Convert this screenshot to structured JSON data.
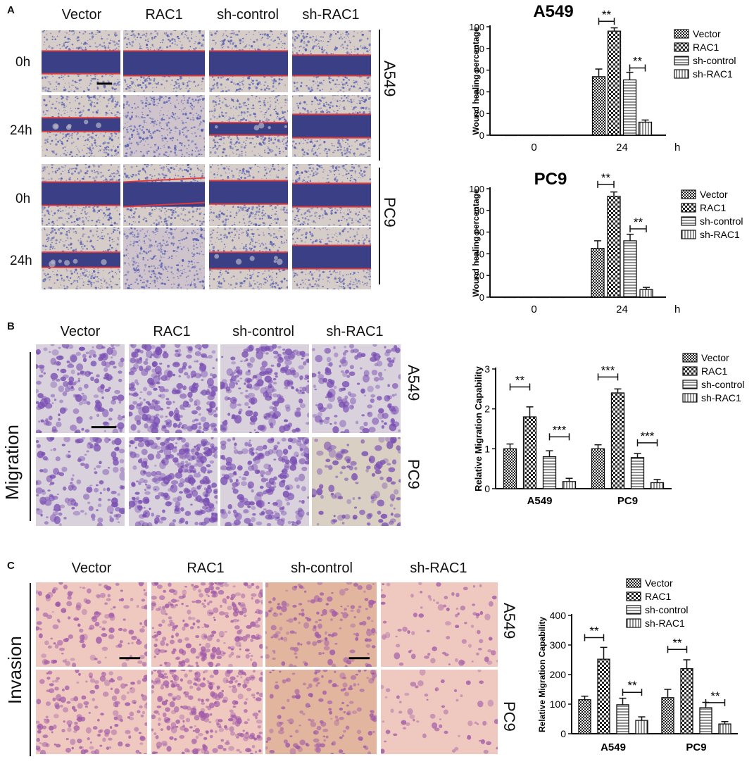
{
  "panelA": {
    "letter": "A",
    "cols": [
      "Vector",
      "RAC1",
      "sh-control",
      "sh-RAC1"
    ],
    "rows": [
      "0h",
      "24h",
      "0h",
      "24h"
    ],
    "cell_lines": [
      "A549",
      "PC9"
    ]
  },
  "panelB": {
    "letter": "B",
    "cols": [
      "Vector",
      "RAC1",
      "sh-control",
      "sh-RAC1"
    ],
    "side": "Migration",
    "cell_lines": [
      "A549",
      "PC9"
    ]
  },
  "panelC": {
    "letter": "C",
    "cols": [
      "Vector",
      "RAC1",
      "sh-control",
      "sh-RAC1"
    ],
    "side": "Invasion",
    "cell_lines": [
      "A549",
      "PC9"
    ]
  },
  "colors": {
    "stain": "#7b6fc9",
    "gap": "#3b3f86",
    "wound_line": "#e23a3a",
    "background_tissue": "#d9c9c6"
  },
  "chart_data": [
    {
      "type": "bar",
      "title": "A549",
      "ylabel": "Wound healing percentage",
      "x_unit": "h",
      "categories": [
        "0",
        "24"
      ],
      "ylim": [
        0,
        100
      ],
      "yticks": [
        0,
        20,
        40,
        60,
        80,
        100
      ],
      "series": [
        {
          "name": "Vector",
          "values": [
            0,
            54
          ],
          "errors": [
            0,
            7
          ]
        },
        {
          "name": "RAC1",
          "values": [
            0,
            96
          ],
          "errors": [
            0,
            3
          ]
        },
        {
          "name": "sh-control",
          "values": [
            0,
            51
          ],
          "errors": [
            0,
            7
          ]
        },
        {
          "name": "sh-RAC1",
          "values": [
            0,
            12
          ],
          "errors": [
            0,
            2
          ]
        }
      ],
      "annotations": [
        {
          "text": "**",
          "from": "Vector",
          "to": "RAC1",
          "y": 105
        },
        {
          "text": "**",
          "from": "sh-control",
          "to": "sh-RAC1",
          "y": 62
        }
      ]
    },
    {
      "type": "bar",
      "title": "PC9",
      "ylabel": "Wound healing percentage",
      "x_unit": "h",
      "categories": [
        "0",
        "24"
      ],
      "ylim": [
        0,
        100
      ],
      "yticks": [
        0,
        20,
        40,
        60,
        80,
        100
      ],
      "series": [
        {
          "name": "Vector",
          "values": [
            0,
            45
          ],
          "errors": [
            0,
            7
          ]
        },
        {
          "name": "RAC1",
          "values": [
            0,
            93
          ],
          "errors": [
            0,
            4
          ]
        },
        {
          "name": "sh-control",
          "values": [
            0,
            52
          ],
          "errors": [
            0,
            6
          ]
        },
        {
          "name": "sh-RAC1",
          "values": [
            0,
            7
          ],
          "errors": [
            0,
            2
          ]
        }
      ],
      "annotations": [
        {
          "text": "**",
          "from": "Vector",
          "to": "RAC1",
          "y": 104
        },
        {
          "text": "**",
          "from": "sh-control",
          "to": "sh-RAC1",
          "y": 63
        }
      ]
    },
    {
      "type": "bar",
      "title": "",
      "ylabel": "Relative Migration Capability",
      "x_unit": "",
      "categories": [
        "A549",
        "PC9"
      ],
      "ylim": [
        0,
        3
      ],
      "yticks": [
        0,
        1,
        2,
        3
      ],
      "series": [
        {
          "name": "Vector",
          "values": [
            1.0,
            1.0
          ],
          "errors": [
            0.12,
            0.1
          ]
        },
        {
          "name": "RAC1",
          "values": [
            1.8,
            2.4
          ],
          "errors": [
            0.25,
            0.1
          ]
        },
        {
          "name": "sh-control",
          "values": [
            0.8,
            0.78
          ],
          "errors": [
            0.15,
            0.1
          ]
        },
        {
          "name": "sh-RAC1",
          "values": [
            0.18,
            0.15
          ],
          "errors": [
            0.08,
            0.08
          ]
        }
      ],
      "annotations": [
        {
          "text": "**",
          "group": 0,
          "from": "Vector",
          "to": "RAC1",
          "y": 2.55
        },
        {
          "text": "***",
          "group": 0,
          "from": "sh-control",
          "to": "sh-RAC1",
          "y": 1.3
        },
        {
          "text": "***",
          "group": 1,
          "from": "Vector",
          "to": "RAC1",
          "y": 2.8
        },
        {
          "text": "***",
          "group": 1,
          "from": "sh-control",
          "to": "sh-RAC1",
          "y": 1.15
        }
      ]
    },
    {
      "type": "bar",
      "title": "",
      "ylabel": "Relative Migration Capability",
      "x_unit": "",
      "categories": [
        "A549",
        "PC9"
      ],
      "ylim": [
        0,
        400
      ],
      "yticks": [
        0,
        100,
        200,
        300,
        400
      ],
      "series": [
        {
          "name": "Vector",
          "values": [
            115,
            122
          ],
          "errors": [
            12,
            28
          ]
        },
        {
          "name": "RAC1",
          "values": [
            252,
            220
          ],
          "errors": [
            40,
            30
          ]
        },
        {
          "name": "sh-control",
          "values": [
            98,
            88
          ],
          "errors": [
            22,
            18
          ]
        },
        {
          "name": "sh-RAC1",
          "values": [
            45,
            33
          ],
          "errors": [
            12,
            8
          ]
        }
      ],
      "annotations": [
        {
          "text": "**",
          "group": 0,
          "from": "Vector",
          "to": "RAC1",
          "y": 325
        },
        {
          "text": "**",
          "group": 0,
          "from": "sh-control",
          "to": "sh-RAC1",
          "y": 140
        },
        {
          "text": "**",
          "group": 1,
          "from": "Vector",
          "to": "RAC1",
          "y": 285
        },
        {
          "text": "**",
          "group": 1,
          "from": "sh-control",
          "to": "sh-RAC1",
          "y": 105
        }
      ]
    }
  ]
}
